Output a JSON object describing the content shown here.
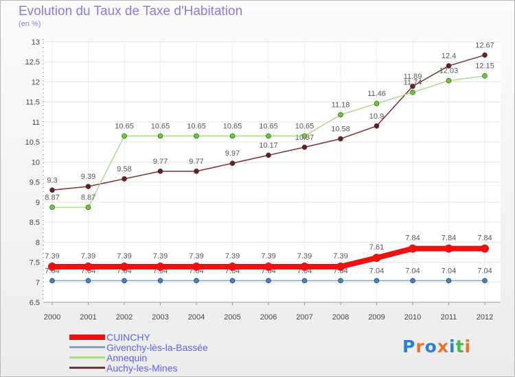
{
  "header": {
    "title": "Evolution du Taux de Taxe d'Habitation",
    "unit": "(en %)"
  },
  "logo": {
    "text": "Proxiti",
    "colors": [
      "#2a7fd4",
      "#e8732a",
      "#2a7fd4",
      "#e8732a",
      "#2a7fd4",
      "#4bb84b",
      "#e8732a"
    ]
  },
  "chart_data": {
    "type": "line",
    "x": [
      2000,
      2001,
      2002,
      2003,
      2004,
      2005,
      2006,
      2007,
      2008,
      2009,
      2010,
      2011,
      2012
    ],
    "ylim": [
      6.5,
      13
    ],
    "yticks": [
      6.5,
      7,
      7.5,
      8,
      8.5,
      9,
      9.5,
      10,
      10.5,
      11,
      11.5,
      12,
      12.5,
      13
    ],
    "grid": "horizontal",
    "legend": "bottom-left",
    "series": [
      {
        "name": "CUINCHY",
        "color": "#ee1111",
        "values": [
          7.39,
          7.39,
          7.39,
          7.39,
          7.39,
          7.39,
          7.39,
          7.39,
          7.39,
          7.61,
          7.84,
          7.84,
          7.84
        ]
      },
      {
        "name": "Givenchy-lès-la-Bassée",
        "color": "#7aa7cc",
        "values": [
          7.04,
          7.04,
          7.04,
          7.04,
          7.04,
          7.04,
          7.04,
          7.04,
          7.04,
          7.04,
          7.04,
          7.04,
          7.04
        ]
      },
      {
        "name": "Annequin",
        "color": "#a9dc86",
        "values": [
          8.87,
          8.87,
          10.65,
          10.65,
          10.65,
          10.65,
          10.65,
          10.65,
          11.18,
          11.46,
          11.74,
          12.03,
          12.15
        ]
      },
      {
        "name": "Auchy-les-Mines",
        "color": "#7a2e2e",
        "values": [
          9.3,
          9.39,
          9.58,
          9.77,
          9.77,
          9.97,
          10.17,
          10.37,
          10.58,
          10.9,
          11.89,
          12.4,
          12.67
        ]
      }
    ]
  }
}
